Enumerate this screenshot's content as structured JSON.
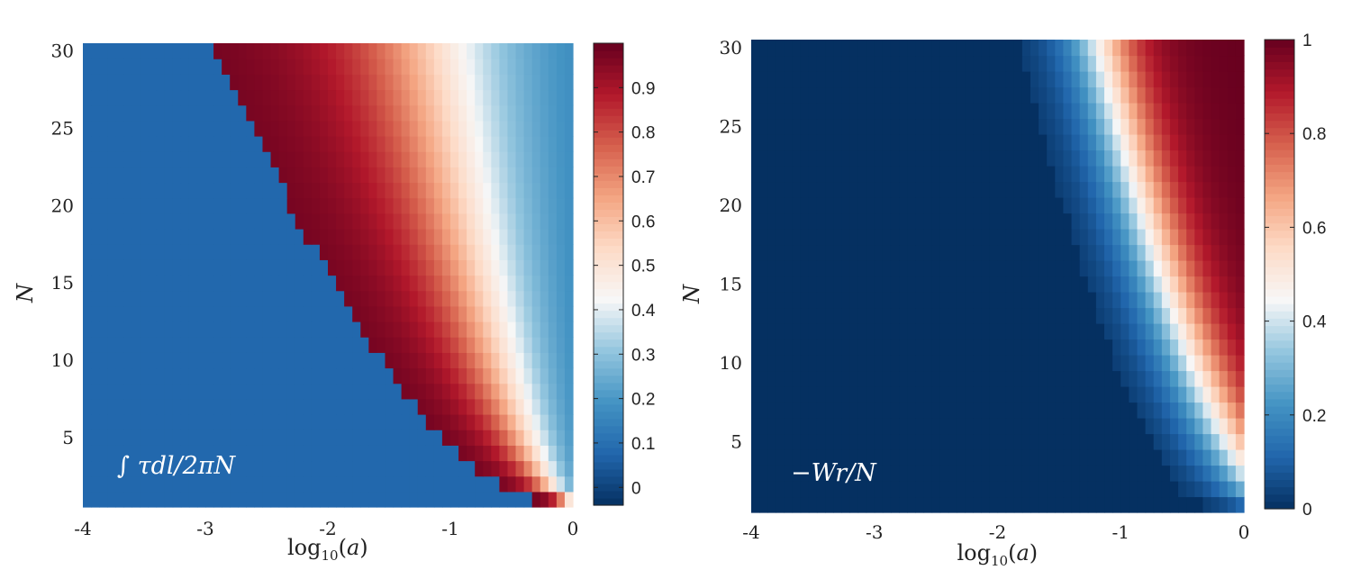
{
  "chart_data": [
    {
      "type": "heatmap",
      "annotation": "∫ τdl/2πN",
      "xlabel": "log10(a)",
      "ylabel": "N",
      "xlim": [
        -4,
        0
      ],
      "ylim": [
        1,
        30
      ],
      "xticks": [
        -4,
        -3,
        -2,
        -1,
        0
      ],
      "yticks": [
        5,
        10,
        15,
        20,
        25,
        30
      ],
      "colorbar": {
        "range": [
          -0.04,
          1.0
        ],
        "ticks": [
          0,
          0.1,
          0.2,
          0.3,
          0.4,
          0.5,
          0.6,
          0.7,
          0.8,
          0.9
        ]
      },
      "colormap": [
        "#053061",
        "#2166ac",
        "#4393c3",
        "#92c5de",
        "#f7f7f7",
        "#fddbc7",
        "#f4a582",
        "#d6604d",
        "#b2182b",
        "#67001f"
      ],
      "surface": {
        "background_value": 0.08,
        "onset_log10a_N30": -2.9,
        "onset_log10a_N1": -0.3,
        "onset_exponent": 0.62,
        "midpoint_log10a_N30": -1.15,
        "midpoint_log10a_N1": -0.05,
        "midpoint_exponent": 0.6,
        "peak_value": 0.99,
        "tail_value": 0.12
      }
    },
    {
      "type": "heatmap",
      "annotation": "−Wr/N",
      "xlabel": "log10(a)",
      "ylabel": "N",
      "xlim": [
        -4,
        0
      ],
      "ylim": [
        1,
        30
      ],
      "xticks": [
        -4,
        -3,
        -2,
        -1,
        0
      ],
      "yticks": [
        5,
        10,
        15,
        20,
        25,
        30
      ],
      "colorbar": {
        "range": [
          0,
          1
        ],
        "ticks": [
          0,
          0.2,
          0.4,
          0.6,
          0.8,
          1
        ]
      },
      "colormap": [
        "#053061",
        "#2166ac",
        "#4393c3",
        "#92c5de",
        "#f7f7f7",
        "#fddbc7",
        "#f4a582",
        "#d6604d",
        "#b2182b",
        "#67001f"
      ],
      "surface": {
        "background_value": 0.0,
        "midpoint_log10a_N30": -1.15,
        "midpoint_log10a_N1": 0.35,
        "midpoint_exponent": 0.6,
        "transition_width": 0.3,
        "max_value": 1.0
      }
    }
  ]
}
